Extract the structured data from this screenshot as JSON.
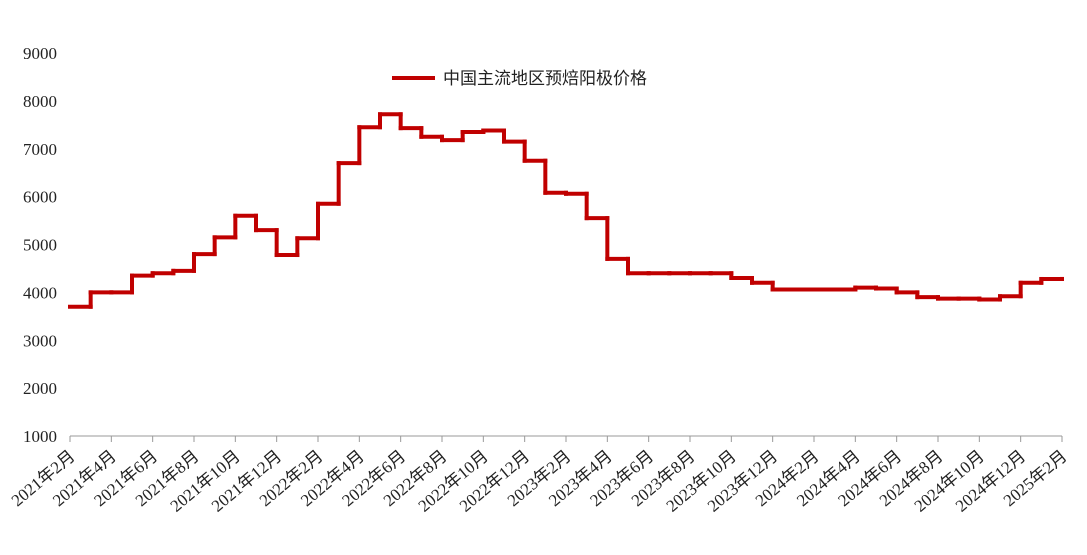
{
  "chart_data": {
    "type": "line",
    "step": true,
    "categories": [
      "2021年2月",
      null,
      "2021年4月",
      null,
      "2021年6月",
      null,
      "2021年8月",
      null,
      "2021年10月",
      null,
      "2021年12月",
      null,
      "2022年2月",
      null,
      "2022年4月",
      null,
      "2022年6月",
      null,
      "2022年8月",
      null,
      "2022年10月",
      null,
      "2022年12月",
      null,
      "2023年2月",
      null,
      "2023年4月",
      null,
      "2023年6月",
      null,
      "2023年8月",
      null,
      "2023年10月",
      null,
      "2023年12月",
      null,
      "2024年2月",
      null,
      "2024年4月",
      null,
      "2024年6月",
      null,
      "2024年8月",
      null,
      "2024年10月",
      null,
      "2024年12月",
      null,
      "2025年2月"
    ],
    "series": [
      {
        "name": "中国主流地区预焙阳极价格",
        "color": "#c00000",
        "values": [
          3700,
          4000,
          4000,
          4350,
          4400,
          4450,
          4800,
          5150,
          5600,
          5300,
          4780,
          5130,
          5850,
          6700,
          7450,
          7720,
          7430,
          7250,
          7180,
          7350,
          7380,
          7150,
          6750,
          6080,
          6060,
          5550,
          4700,
          4400,
          4400,
          4400,
          4400,
          4400,
          4300,
          4200,
          4060,
          4060,
          4060,
          4060,
          4100,
          4080,
          4000,
          3900,
          3870,
          3870,
          3850,
          3920,
          4200,
          4280,
          4280
        ]
      }
    ],
    "ylim": [
      1000,
      9000
    ],
    "yticks": [
      1000,
      2000,
      3000,
      4000,
      5000,
      6000,
      7000,
      8000,
      9000
    ],
    "grid": false
  }
}
